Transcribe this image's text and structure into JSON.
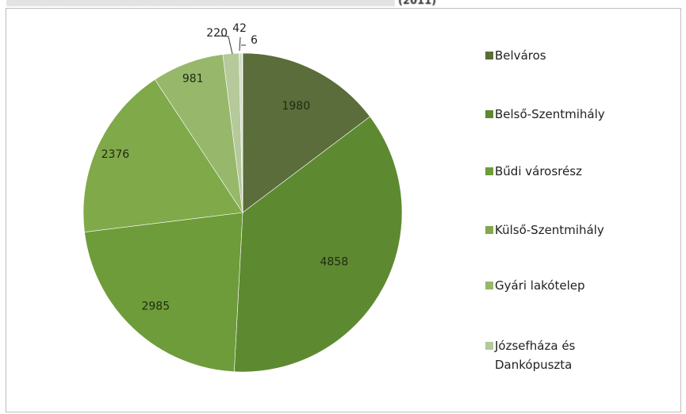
{
  "title_fragment": "(2011)",
  "chart_data": {
    "type": "pie",
    "legend_position": "right",
    "slices": [
      {
        "label": "Belváros",
        "value": 1980,
        "color": "#5a6d3a"
      },
      {
        "label": "Belső-Szentmihály",
        "value": 4858,
        "color": "#5d8a30"
      },
      {
        "label": "Bűdi városrész",
        "value": 2985,
        "color": "#6e9c3a"
      },
      {
        "label": "Külső-Szentmihály",
        "value": 2376,
        "color": "#80a94a"
      },
      {
        "label": "Gyári lakótelep",
        "value": 981,
        "color": "#97b86a"
      },
      {
        "label": "Józsefháza és\nDankópuszta",
        "value": 220,
        "color": "#b5c99a"
      },
      {
        "label": "",
        "value": 42,
        "color": "#d2dec5"
      },
      {
        "label": "",
        "value": 6,
        "color": "#e6ece0"
      }
    ],
    "data_labels": [
      "1980",
      "4858",
      "2985",
      "2376",
      "981",
      "220",
      "42",
      "6"
    ]
  }
}
